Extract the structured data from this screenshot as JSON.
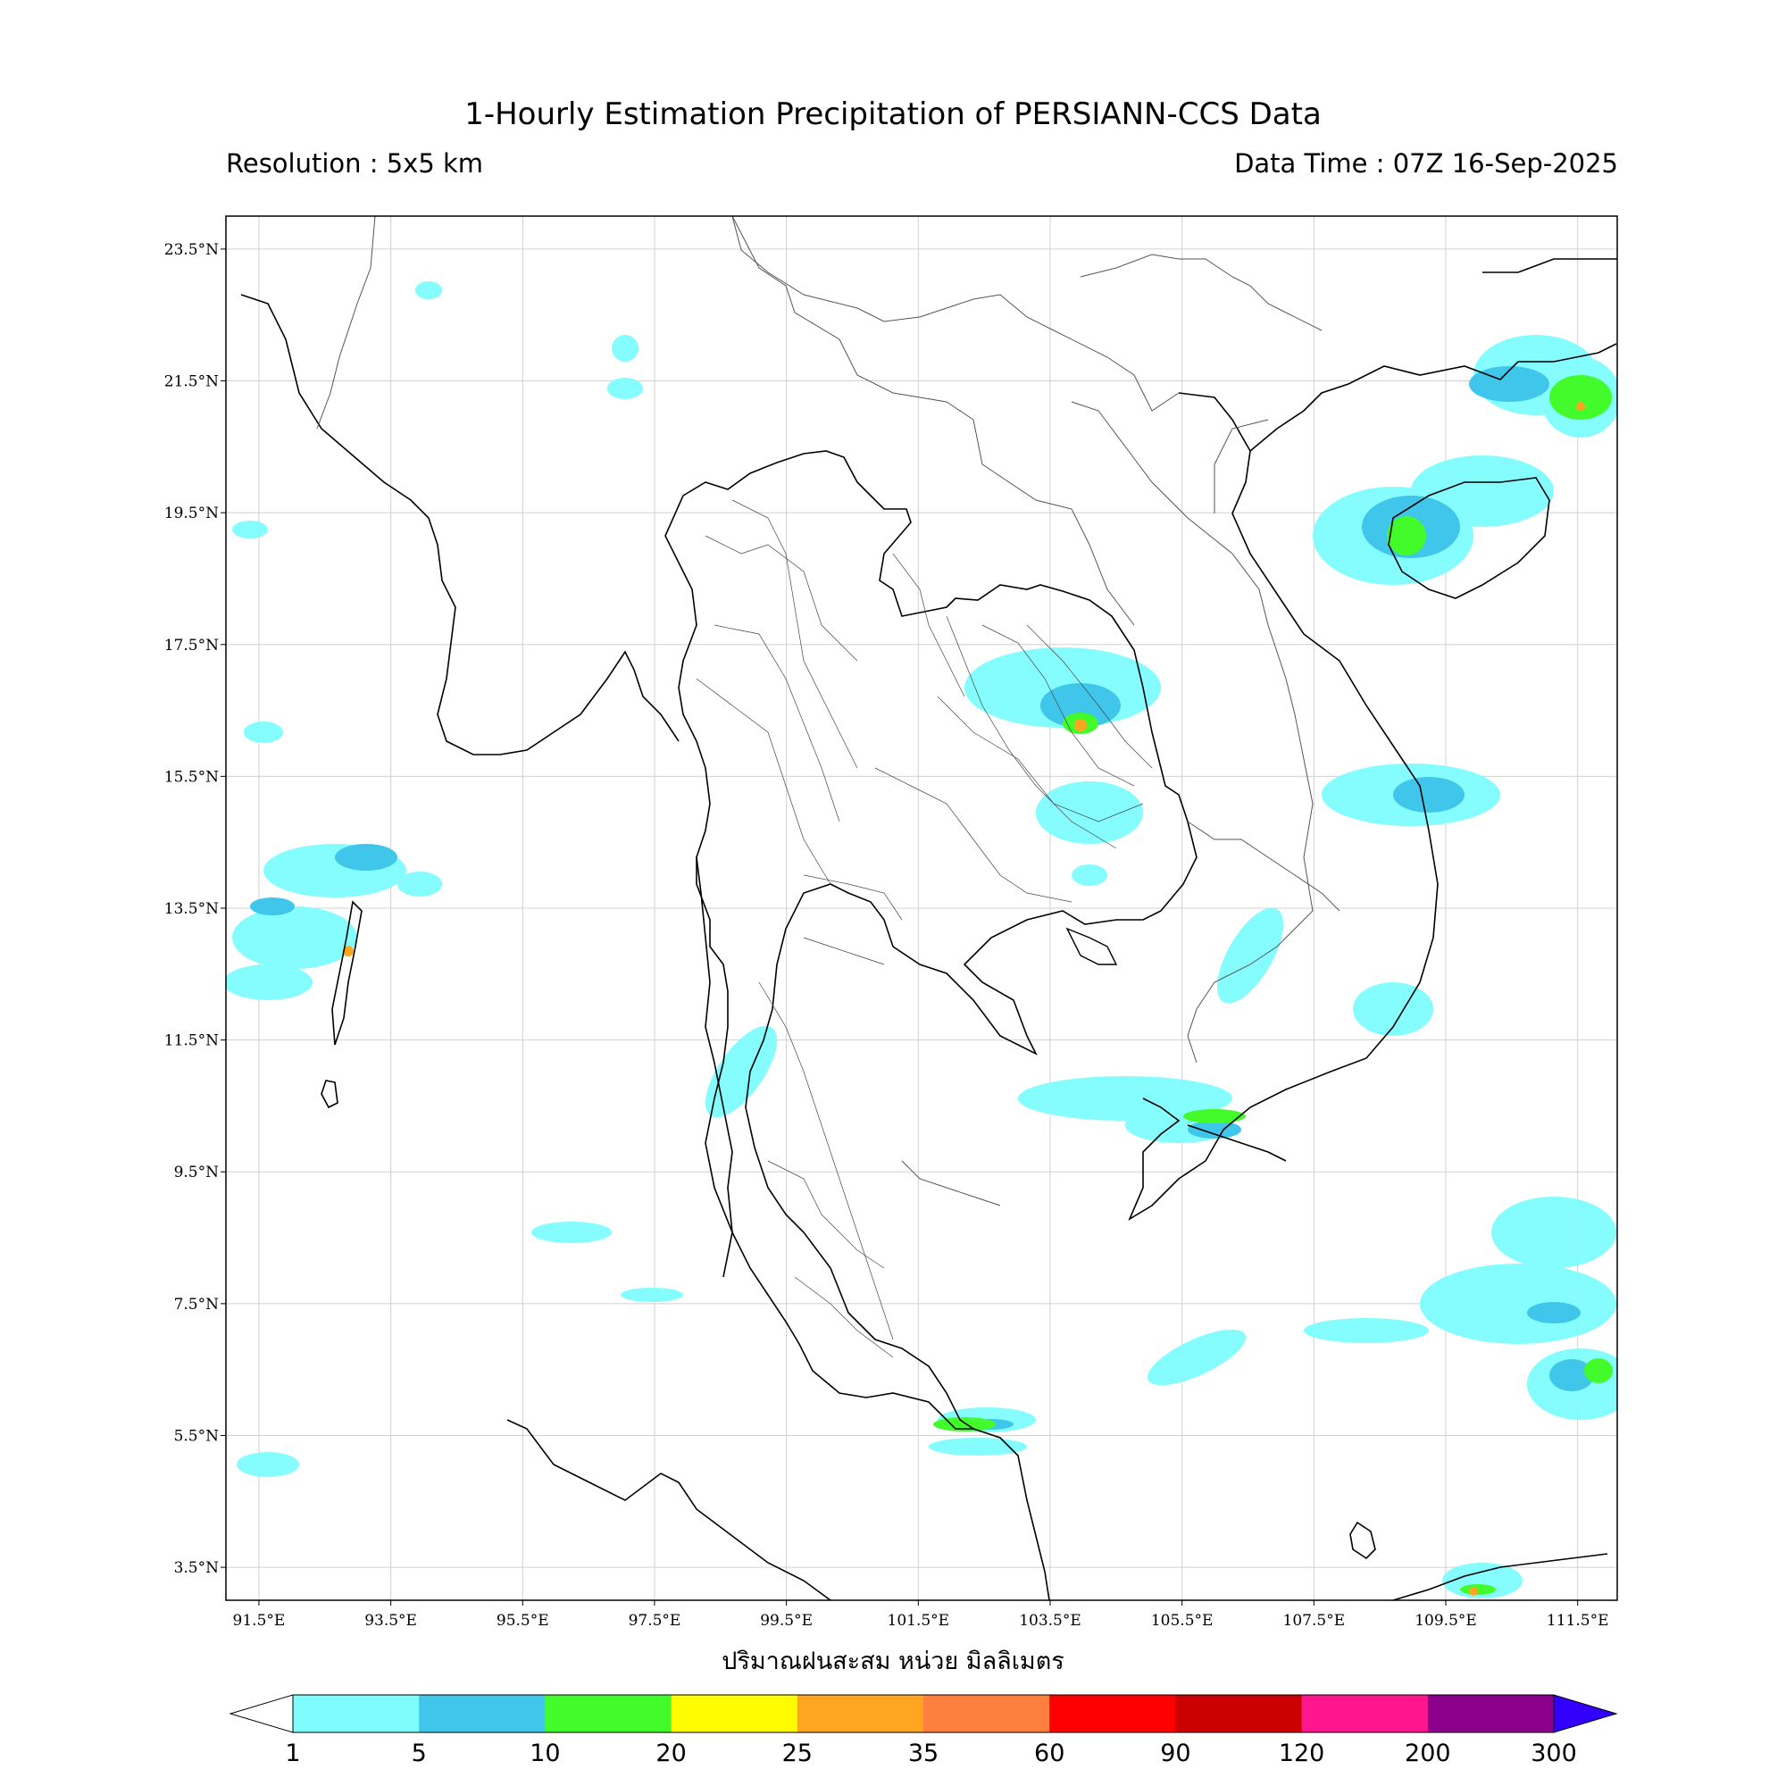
{
  "header": {
    "title": "1-Hourly Estimation Precipitation of PERSIANN-CCS Data",
    "resolution": "Resolution : 5x5 km",
    "data_time": "Data Time : 07Z 16-Sep-2025"
  },
  "map": {
    "x_axis_label": "ปริมาณฝนสะสม หน่วย มิลลิเมตร",
    "lon_ticks": [
      "91.5°E",
      "93.5°E",
      "95.5°E",
      "97.5°E",
      "99.5°E",
      "101.5°E",
      "103.5°E",
      "105.5°E",
      "107.5°E",
      "109.5°E",
      "111.5°E"
    ],
    "lat_ticks": [
      "23.5°N",
      "21.5°N",
      "19.5°N",
      "17.5°N",
      "15.5°N",
      "13.5°N",
      "11.5°N",
      "9.5°N",
      "7.5°N",
      "5.5°N",
      "3.5°N"
    ],
    "extent": {
      "lon_min": 91.0,
      "lon_max": 112.1,
      "lat_min": 3.0,
      "lat_max": 24.0
    },
    "grid": true
  },
  "colorbar": {
    "ticks": [
      "1",
      "5",
      "10",
      "20",
      "25",
      "35",
      "60",
      "90",
      "120",
      "200",
      "300"
    ],
    "colors": [
      "#7ffcfd",
      "#40c6ea",
      "#43fb2b",
      "#fffb00",
      "#ffa520",
      "#ff803e",
      "#ff0000",
      "#cb0000",
      "#ff168f",
      "#8b008b",
      "#3300ff"
    ],
    "under_color": "#ffffff",
    "over_color": "#3300ff"
  }
}
